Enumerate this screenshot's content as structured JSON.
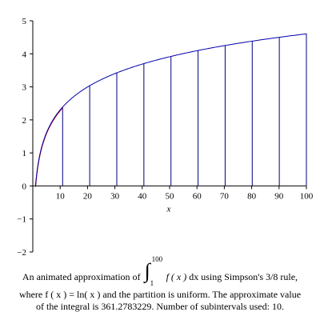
{
  "chart_data": {
    "type": "line",
    "title": "",
    "xlabel": "x",
    "ylabel": "",
    "xlim": [
      0,
      100
    ],
    "ylim": [
      -2,
      5
    ],
    "xticks": [
      10,
      20,
      30,
      40,
      50,
      60,
      70,
      80,
      90,
      100
    ],
    "yticks": [
      -2,
      -1,
      0,
      1,
      2,
      3,
      4,
      5
    ],
    "grid": false,
    "function": "ln(x)",
    "x_start": 1,
    "x_end": 100,
    "partition_x": [
      1,
      10.9,
      20.8,
      30.7,
      40.6,
      50.5,
      60.4,
      70.3,
      80.2,
      90.1,
      100
    ],
    "partition_heights": [
      0,
      2.389,
      3.035,
      3.424,
      3.704,
      3.922,
      4.101,
      4.253,
      4.385,
      4.501,
      4.605
    ],
    "series": [
      {
        "values": []
      }
    ],
    "colors": {
      "curve": "#0000aa",
      "approximation": "#cc0000",
      "partition": "#000080",
      "axes": "#000000"
    }
  },
  "caption": {
    "line1_pre": "An animated approximation of",
    "integral_upper": "100",
    "integral_lower": "1",
    "integrand": "f ( x )",
    "dx": "dx",
    "line1_post": "using Simpson's 3/8 rule,",
    "line2": "where f ( x ) = ln( x )  and the partition is uniform.  The approximate value",
    "line3": "of the integral is 361.2783229.  Number of subintervals used: 10."
  }
}
